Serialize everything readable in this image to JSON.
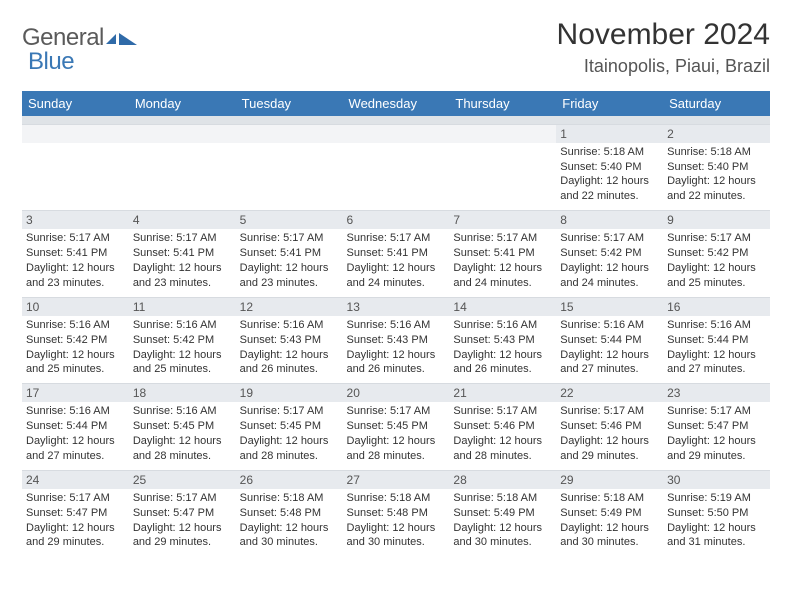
{
  "brand": {
    "word1": "General",
    "word2": "Blue"
  },
  "title": "November 2024",
  "location": "Itainopolis, Piaui, Brazil",
  "colors": {
    "header_bg": "#3a78b5",
    "header_text": "#ffffff",
    "subheader_bg": "#dfe3e7",
    "daynum_bg": "#e7eaee",
    "border": "#d7dbe0",
    "text": "#333333",
    "brand_gray": "#5a5a5a",
    "brand_blue": "#3a78b5"
  },
  "day_names": [
    "Sunday",
    "Monday",
    "Tuesday",
    "Wednesday",
    "Thursday",
    "Friday",
    "Saturday"
  ],
  "weeks": [
    [
      {
        "n": "",
        "lines": []
      },
      {
        "n": "",
        "lines": []
      },
      {
        "n": "",
        "lines": []
      },
      {
        "n": "",
        "lines": []
      },
      {
        "n": "",
        "lines": []
      },
      {
        "n": "1",
        "lines": [
          "Sunrise: 5:18 AM",
          "Sunset: 5:40 PM",
          "Daylight: 12 hours",
          "and 22 minutes."
        ]
      },
      {
        "n": "2",
        "lines": [
          "Sunrise: 5:18 AM",
          "Sunset: 5:40 PM",
          "Daylight: 12 hours",
          "and 22 minutes."
        ]
      }
    ],
    [
      {
        "n": "3",
        "lines": [
          "Sunrise: 5:17 AM",
          "Sunset: 5:41 PM",
          "Daylight: 12 hours",
          "and 23 minutes."
        ]
      },
      {
        "n": "4",
        "lines": [
          "Sunrise: 5:17 AM",
          "Sunset: 5:41 PM",
          "Daylight: 12 hours",
          "and 23 minutes."
        ]
      },
      {
        "n": "5",
        "lines": [
          "Sunrise: 5:17 AM",
          "Sunset: 5:41 PM",
          "Daylight: 12 hours",
          "and 23 minutes."
        ]
      },
      {
        "n": "6",
        "lines": [
          "Sunrise: 5:17 AM",
          "Sunset: 5:41 PM",
          "Daylight: 12 hours",
          "and 24 minutes."
        ]
      },
      {
        "n": "7",
        "lines": [
          "Sunrise: 5:17 AM",
          "Sunset: 5:41 PM",
          "Daylight: 12 hours",
          "and 24 minutes."
        ]
      },
      {
        "n": "8",
        "lines": [
          "Sunrise: 5:17 AM",
          "Sunset: 5:42 PM",
          "Daylight: 12 hours",
          "and 24 minutes."
        ]
      },
      {
        "n": "9",
        "lines": [
          "Sunrise: 5:17 AM",
          "Sunset: 5:42 PM",
          "Daylight: 12 hours",
          "and 25 minutes."
        ]
      }
    ],
    [
      {
        "n": "10",
        "lines": [
          "Sunrise: 5:16 AM",
          "Sunset: 5:42 PM",
          "Daylight: 12 hours",
          "and 25 minutes."
        ]
      },
      {
        "n": "11",
        "lines": [
          "Sunrise: 5:16 AM",
          "Sunset: 5:42 PM",
          "Daylight: 12 hours",
          "and 25 minutes."
        ]
      },
      {
        "n": "12",
        "lines": [
          "Sunrise: 5:16 AM",
          "Sunset: 5:43 PM",
          "Daylight: 12 hours",
          "and 26 minutes."
        ]
      },
      {
        "n": "13",
        "lines": [
          "Sunrise: 5:16 AM",
          "Sunset: 5:43 PM",
          "Daylight: 12 hours",
          "and 26 minutes."
        ]
      },
      {
        "n": "14",
        "lines": [
          "Sunrise: 5:16 AM",
          "Sunset: 5:43 PM",
          "Daylight: 12 hours",
          "and 26 minutes."
        ]
      },
      {
        "n": "15",
        "lines": [
          "Sunrise: 5:16 AM",
          "Sunset: 5:44 PM",
          "Daylight: 12 hours",
          "and 27 minutes."
        ]
      },
      {
        "n": "16",
        "lines": [
          "Sunrise: 5:16 AM",
          "Sunset: 5:44 PM",
          "Daylight: 12 hours",
          "and 27 minutes."
        ]
      }
    ],
    [
      {
        "n": "17",
        "lines": [
          "Sunrise: 5:16 AM",
          "Sunset: 5:44 PM",
          "Daylight: 12 hours",
          "and 27 minutes."
        ]
      },
      {
        "n": "18",
        "lines": [
          "Sunrise: 5:16 AM",
          "Sunset: 5:45 PM",
          "Daylight: 12 hours",
          "and 28 minutes."
        ]
      },
      {
        "n": "19",
        "lines": [
          "Sunrise: 5:17 AM",
          "Sunset: 5:45 PM",
          "Daylight: 12 hours",
          "and 28 minutes."
        ]
      },
      {
        "n": "20",
        "lines": [
          "Sunrise: 5:17 AM",
          "Sunset: 5:45 PM",
          "Daylight: 12 hours",
          "and 28 minutes."
        ]
      },
      {
        "n": "21",
        "lines": [
          "Sunrise: 5:17 AM",
          "Sunset: 5:46 PM",
          "Daylight: 12 hours",
          "and 28 minutes."
        ]
      },
      {
        "n": "22",
        "lines": [
          "Sunrise: 5:17 AM",
          "Sunset: 5:46 PM",
          "Daylight: 12 hours",
          "and 29 minutes."
        ]
      },
      {
        "n": "23",
        "lines": [
          "Sunrise: 5:17 AM",
          "Sunset: 5:47 PM",
          "Daylight: 12 hours",
          "and 29 minutes."
        ]
      }
    ],
    [
      {
        "n": "24",
        "lines": [
          "Sunrise: 5:17 AM",
          "Sunset: 5:47 PM",
          "Daylight: 12 hours",
          "and 29 minutes."
        ]
      },
      {
        "n": "25",
        "lines": [
          "Sunrise: 5:17 AM",
          "Sunset: 5:47 PM",
          "Daylight: 12 hours",
          "and 29 minutes."
        ]
      },
      {
        "n": "26",
        "lines": [
          "Sunrise: 5:18 AM",
          "Sunset: 5:48 PM",
          "Daylight: 12 hours",
          "and 30 minutes."
        ]
      },
      {
        "n": "27",
        "lines": [
          "Sunrise: 5:18 AM",
          "Sunset: 5:48 PM",
          "Daylight: 12 hours",
          "and 30 minutes."
        ]
      },
      {
        "n": "28",
        "lines": [
          "Sunrise: 5:18 AM",
          "Sunset: 5:49 PM",
          "Daylight: 12 hours",
          "and 30 minutes."
        ]
      },
      {
        "n": "29",
        "lines": [
          "Sunrise: 5:18 AM",
          "Sunset: 5:49 PM",
          "Daylight: 12 hours",
          "and 30 minutes."
        ]
      },
      {
        "n": "30",
        "lines": [
          "Sunrise: 5:19 AM",
          "Sunset: 5:50 PM",
          "Daylight: 12 hours",
          "and 31 minutes."
        ]
      }
    ]
  ]
}
